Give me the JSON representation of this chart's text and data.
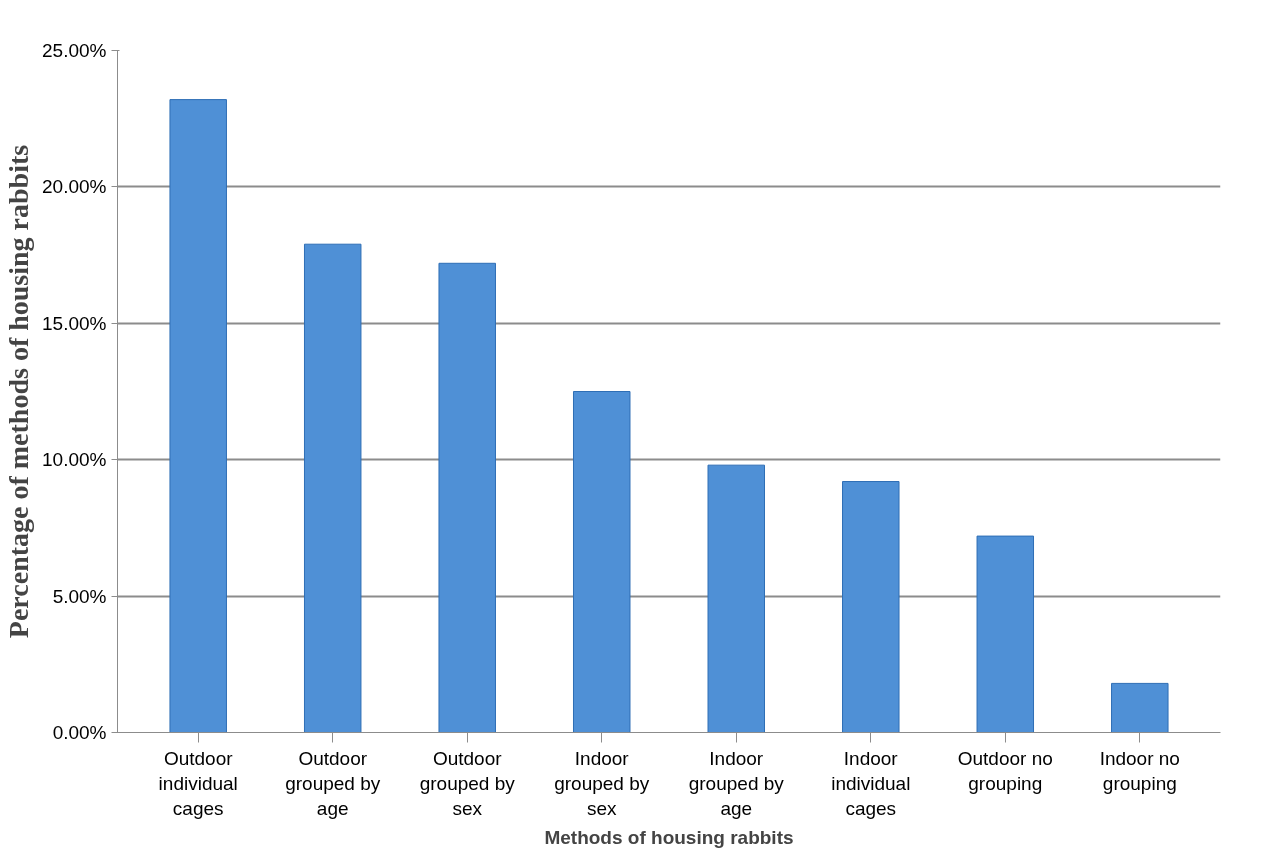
{
  "chart_data": {
    "type": "bar",
    "xlabel": "Methods of housing rabbits",
    "ylabel": "Percentage of methods of housing rabbits",
    "categories": [
      "Outdoor individual cages",
      "Outdoor grouped by age",
      "Outdoor grouped by sex",
      "Indoor grouped by sex",
      "Indoor grouped by age",
      "Indoor individual cages",
      "Outdoor no grouping",
      "Indoor no grouping"
    ],
    "values": [
      23.2,
      17.9,
      17.2,
      12.5,
      9.8,
      9.2,
      7.2,
      1.8
    ],
    "color": "#4f90d6",
    "ylim": [
      0,
      25
    ],
    "yticks": [
      {
        "value": 0,
        "label": "0.00%"
      },
      {
        "value": 5,
        "label": "5.00%"
      },
      {
        "value": 10,
        "label": "10.00%"
      },
      {
        "value": 15,
        "label": "15.00%"
      },
      {
        "value": 20,
        "label": "20.00%"
      },
      {
        "value": 25,
        "label": "25.00%"
      }
    ],
    "grid": "y"
  }
}
